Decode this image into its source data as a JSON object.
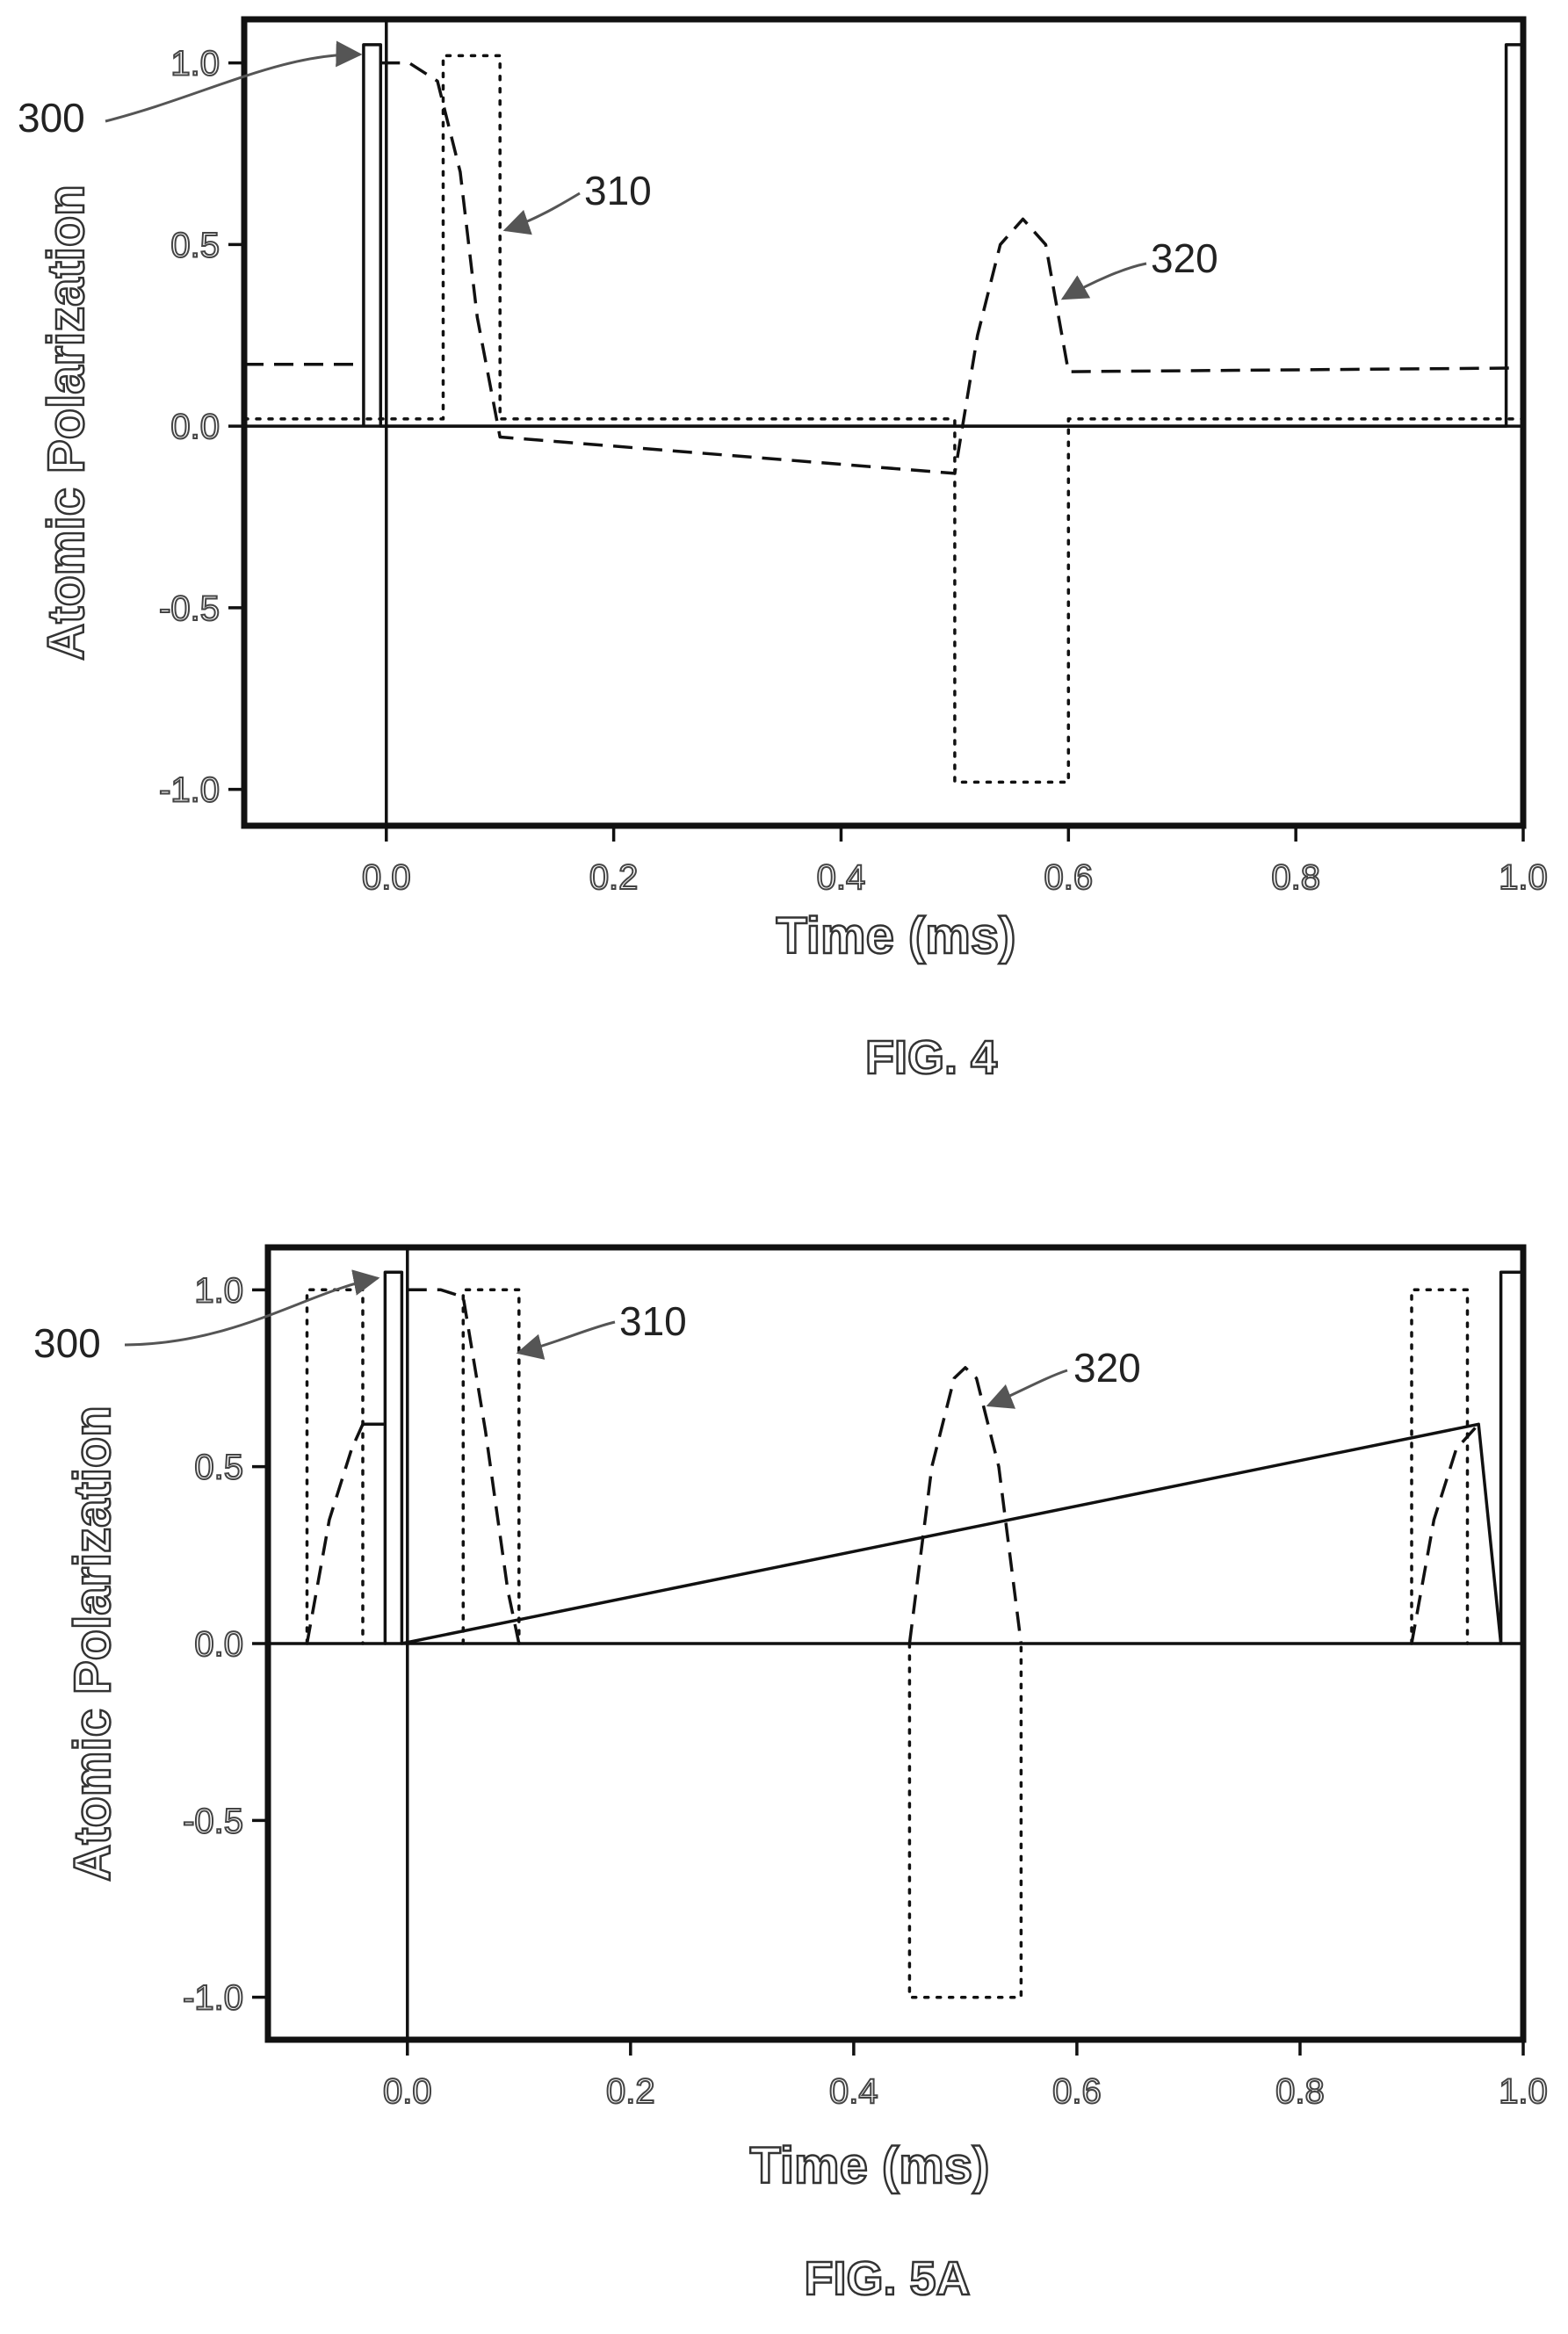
{
  "figures": [
    {
      "caption": "FIG. 4",
      "chart_data": {
        "type": "line",
        "xlabel": "Time (ms)",
        "ylabel": "Atomic Polarization",
        "xlim": [
          -0.125,
          1.0
        ],
        "ylim": [
          -1.1,
          1.12
        ],
        "xticks": [
          "0.0",
          "0.2",
          "0.4",
          "0.6",
          "0.8",
          "1.0"
        ],
        "xtick_values": [
          0.0,
          0.2,
          0.4,
          0.6,
          0.8,
          1.0
        ],
        "yticks": [
          "1.0",
          "0.5",
          "0.0",
          "-0.5",
          "-1.0"
        ],
        "ytick_values": [
          1.0,
          0.5,
          0.0,
          -0.5,
          -1.0
        ],
        "grid": false,
        "reference_lines": [
          {
            "orientation": "horizontal",
            "value": 0.0
          },
          {
            "orientation": "vertical",
            "value": 0.0
          }
        ],
        "series": [
          {
            "style": "solid",
            "x": [
              -0.02,
              -0.02,
              -0.005,
              -0.005,
              0.985,
              0.985,
              1.0
            ],
            "y": [
              0.0,
              1.05,
              1.05,
              0.0,
              0.0,
              1.05,
              1.05
            ]
          },
          {
            "style": "dotted",
            "x": [
              -0.125,
              0.05,
              0.05,
              0.1,
              0.1,
              0.5,
              0.5,
              0.6,
              0.6,
              1.0
            ],
            "y": [
              0.02,
              0.02,
              1.02,
              1.02,
              0.02,
              0.02,
              -0.98,
              -0.98,
              0.02,
              0.02
            ]
          },
          {
            "style": "dashed",
            "x": [
              -0.125,
              -0.02,
              null,
              -0.005,
              0.02,
              0.045,
              0.065,
              0.08,
              0.1,
              0.5,
              0.52,
              0.54,
              0.56,
              0.58,
              0.6,
              0.99
            ],
            "y": [
              0.17,
              0.17,
              null,
              1.0,
              1.0,
              0.95,
              0.7,
              0.3,
              -0.03,
              -0.13,
              0.25,
              0.5,
              0.57,
              0.5,
              0.15,
              0.16
            ]
          }
        ],
        "annotations": [
          {
            "text": "300",
            "x": -0.02,
            "y": 1.05
          },
          {
            "text": "310",
            "x": 0.1,
            "y": 0.55
          },
          {
            "text": "320",
            "x": 0.595,
            "y": 0.35
          }
        ]
      }
    },
    {
      "caption": "FIG. 5A",
      "chart_data": {
        "type": "line",
        "xlabel": "Time (ms)",
        "ylabel": "Atomic Polarization",
        "xlim": [
          -0.125,
          1.0
        ],
        "ylim": [
          -1.12,
          1.12
        ],
        "xticks": [
          "0.0",
          "0.2",
          "0.4",
          "0.6",
          "0.8",
          "1.0"
        ],
        "xtick_values": [
          0.0,
          0.2,
          0.4,
          0.6,
          0.8,
          1.0
        ],
        "yticks": [
          "1.0",
          "0.5",
          "0.0",
          "-0.5",
          "-1.0"
        ],
        "ytick_values": [
          1.0,
          0.5,
          0.0,
          -0.5,
          -1.0
        ],
        "grid": false,
        "reference_lines": [
          {
            "orientation": "horizontal",
            "value": 0.0
          },
          {
            "orientation": "vertical",
            "value": 0.0
          }
        ],
        "series": [
          {
            "style": "solid",
            "x": [
              -0.04,
              -0.04,
              -0.02,
              -0.02,
              -0.02,
              -0.005,
              -0.005,
              0.96,
              0.96,
              0.98,
              0.98,
              1.0
            ],
            "y": [
              0.62,
              0.62,
              0.62,
              0.0,
              1.05,
              1.05,
              0.0,
              0.62,
              0.62,
              0.0,
              1.05,
              1.05
            ]
          },
          {
            "style": "dotted",
            "x": [
              -0.09,
              -0.09,
              -0.04,
              -0.04,
              null,
              0.05,
              0.05,
              0.1,
              0.1,
              null,
              0.45,
              0.45,
              0.55,
              0.55,
              null,
              0.9,
              0.9,
              0.95,
              0.95
            ],
            "y": [
              0.0,
              1.0,
              1.0,
              0.0,
              null,
              0.0,
              1.0,
              1.0,
              0.0,
              null,
              0.0,
              -1.0,
              -1.0,
              0.0,
              null,
              0.0,
              1.0,
              1.0,
              0.0
            ]
          },
          {
            "style": "dashed",
            "x": [
              -0.09,
              -0.07,
              -0.05,
              -0.04,
              null,
              0.0,
              0.03,
              0.05,
              0.07,
              0.09,
              0.1,
              null,
              0.45,
              0.47,
              0.49,
              0.5,
              0.51,
              0.53,
              0.55,
              null,
              0.9,
              0.92,
              0.94,
              0.96
            ],
            "y": [
              0.0,
              0.35,
              0.55,
              0.62,
              null,
              1.0,
              1.0,
              0.98,
              0.6,
              0.15,
              0.0,
              null,
              0.0,
              0.5,
              0.75,
              0.78,
              0.75,
              0.5,
              0.0,
              null,
              0.0,
              0.35,
              0.55,
              0.62
            ]
          }
        ],
        "annotations": [
          {
            "text": "300",
            "x": -0.02,
            "y": 1.05
          },
          {
            "text": "310",
            "x": 0.1,
            "y": 0.85
          },
          {
            "text": "320",
            "x": 0.5,
            "y": 0.72
          }
        ]
      }
    }
  ]
}
